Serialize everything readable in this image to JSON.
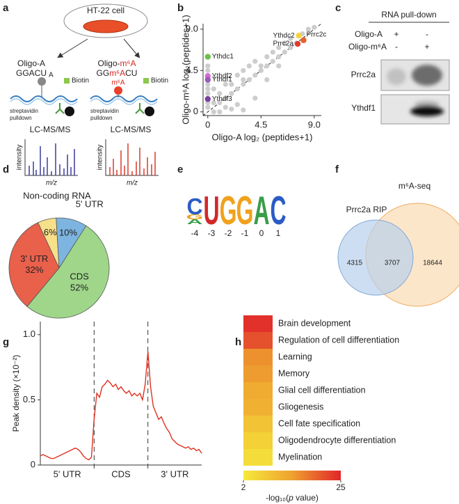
{
  "panel_labels": [
    "a",
    "b",
    "c",
    "d",
    "e",
    "f",
    "g",
    "h"
  ],
  "panel_a": {
    "cell": "HT-22 cell",
    "oligo_a": "Oligo-A",
    "seq_a": "GGACU",
    "oligo_m6a": [
      "Oligo-",
      "m⁶A"
    ],
    "seq_m6a": [
      "GG",
      "m⁶A",
      "CU"
    ],
    "mod_label": "m⁶A",
    "base_label": "A",
    "biotin": [
      "Biotin",
      "Biotin"
    ],
    "pulldown": [
      [
        "streptavidin",
        "pulldown"
      ],
      [
        "streptavidin",
        "pulldown"
      ]
    ],
    "method": [
      "LC-MS/MS",
      "LC-MS/MS"
    ],
    "y_label": [
      "intensity",
      "intensity"
    ],
    "x_label": [
      "m/z",
      "m/z"
    ]
  },
  "panel_c": {
    "title": "RNA pull-down",
    "rows": [
      {
        "label": "Oligo-A",
        "lanes": [
          "+",
          "-"
        ]
      },
      {
        "label": "Oligo-m⁶A",
        "lanes": [
          "-",
          "+"
        ]
      }
    ],
    "blots": [
      "Prrc2a",
      "Ythdf1"
    ]
  },
  "panel_e": {
    "columns": [
      {
        "letters": [
          "C",
          "G",
          "A"
        ],
        "colors": [
          "#2b5cc6",
          "#f0a21c",
          "#3a9d48"
        ]
      },
      {
        "letters": [
          "U"
        ],
        "colors": [
          "#d2282a"
        ]
      },
      {
        "letters": [
          "G"
        ],
        "colors": [
          "#f0a21c"
        ]
      },
      {
        "letters": [
          "G"
        ],
        "colors": [
          "#f0a21c"
        ]
      },
      {
        "letters": [
          "A"
        ],
        "colors": [
          "#3a9d48"
        ]
      },
      {
        "letters": [
          "C"
        ],
        "colors": [
          "#2b5cc6"
        ]
      }
    ],
    "positions": [
      -4,
      -3,
      -2,
      -1,
      0,
      1
    ]
  },
  "panel_f": {
    "sets": [
      "Prrc2a RIP",
      "m⁶A-seq"
    ],
    "counts": [
      4315,
      3707,
      18644
    ]
  },
  "chart_data": [
    {
      "type": "scatter",
      "x_label": "Oligo-A log₂ (peptides+1)",
      "y_label": "Oligo-m⁶A log₂(peptides+1)",
      "xlim": [
        -0.4,
        9.6
      ],
      "ylim": [
        -0.4,
        9.6
      ],
      "xticks": [
        0,
        4.5,
        {
          "value": 9,
          "label": "9.0"
        }
      ],
      "yticks": [
        0,
        4.5,
        {
          "value": 9,
          "label": "9.0"
        }
      ],
      "diagonal": true,
      "series": [
        {
          "color": "#cdcdcd",
          "x": [
            0,
            0,
            0,
            0,
            0,
            0,
            0,
            0.5,
            0.5,
            1,
            1,
            1.5,
            1.5,
            2,
            2,
            2.5,
            2.5,
            3,
            3,
            3,
            3.5,
            3.5,
            4,
            4,
            4.5,
            4.5,
            5,
            5,
            5.5,
            5.5,
            6,
            6,
            6.5,
            6.5,
            7,
            7,
            7.5,
            8,
            8.5,
            9,
            1,
            2,
            3,
            0.5,
            1.5,
            2.5,
            4,
            5,
            6
          ],
          "y": [
            0.5,
            1,
            2,
            2.5,
            3,
            4.5,
            5,
            1,
            2.5,
            1,
            2,
            1.5,
            3,
            2,
            3,
            2.5,
            4,
            3,
            3.5,
            4.5,
            3.5,
            5,
            4,
            5.5,
            4.5,
            5,
            5,
            6,
            5.5,
            6.5,
            6,
            7,
            6.5,
            7.5,
            7,
            8,
            7.5,
            8.5,
            9,
            9.2,
            0,
            0.3,
            0.2,
            0,
            0.5,
            0.8,
            1.5,
            3.5,
            5
          ]
        }
      ],
      "annotations": [
        {
          "text": "Ythdc1",
          "x": 0,
          "y": 6,
          "color": "#6cc04a"
        },
        {
          "text": "Ythdf2",
          "x": 0,
          "y": 3.9,
          "color": "#d66ad6"
        },
        {
          "text": "Ythdf1",
          "x": 0,
          "y": 3.5,
          "color": "#9b59b6"
        },
        {
          "text": "Ythdf3",
          "x": 0,
          "y": 1.4,
          "color": "#7b3f9e"
        },
        {
          "text": "Ythdc2",
          "x": 7.7,
          "y": 8.3,
          "color": "#f5d33a"
        },
        {
          "text": "Prrc2c",
          "x": 8.1,
          "y": 7.8,
          "color": "#e8602a"
        },
        {
          "text": "Prrc2a",
          "x": 7.6,
          "y": 7.4,
          "color": "#e23a2a"
        }
      ]
    },
    {
      "type": "pie",
      "title": "Non-coding RNA",
      "categories": [
        "Non-coding RNA",
        "5' UTR",
        "CDS",
        "3' UTR"
      ],
      "values": [
        6,
        10,
        52,
        32
      ],
      "value_labels": [
        "6%",
        "10%",
        "52%",
        "32%"
      ],
      "colors": [
        "#f7e08a",
        "#7db5e0",
        "#9fd68a",
        "#e9604b"
      ]
    },
    {
      "type": "line",
      "y_label": "Peak density (×10⁻²)",
      "color": "#e0301e",
      "regions": [
        "5' UTR",
        "CDS",
        "3' UTR"
      ],
      "boundaries": [
        1,
        2
      ],
      "xlim": [
        0,
        3
      ],
      "ylim": [
        0,
        1.1
      ],
      "yticks": [
        0,
        0.5,
        {
          "value": 1,
          "label": "1.0"
        }
      ],
      "x": [
        0,
        0.05,
        0.1,
        0.15,
        0.2,
        0.25,
        0.3,
        0.35,
        0.4,
        0.45,
        0.5,
        0.55,
        0.6,
        0.65,
        0.7,
        0.75,
        0.8,
        0.85,
        0.9,
        0.95,
        1,
        1.05,
        1.1,
        1.15,
        1.2,
        1.25,
        1.3,
        1.35,
        1.4,
        1.45,
        1.5,
        1.55,
        1.6,
        1.65,
        1.7,
        1.75,
        1.8,
        1.85,
        1.9,
        1.95,
        2,
        2.05,
        2.1,
        2.15,
        2.2,
        2.25,
        2.3,
        2.35,
        2.4,
        2.45,
        2.5,
        2.55,
        2.6,
        2.65,
        2.7,
        2.75,
        2.8,
        2.85,
        2.9,
        2.95,
        3
      ],
      "values": [
        0.07,
        0.08,
        0.07,
        0.06,
        0.05,
        0.05,
        0.06,
        0.07,
        0.08,
        0.09,
        0.1,
        0.11,
        0.12,
        0.13,
        0.12,
        0.1,
        0.07,
        0.05,
        0.04,
        0.06,
        0.35,
        0.55,
        0.52,
        0.6,
        0.62,
        0.65,
        0.63,
        0.6,
        0.62,
        0.58,
        0.6,
        0.57,
        0.55,
        0.57,
        0.53,
        0.55,
        0.53,
        0.55,
        0.5,
        0.62,
        0.87,
        0.6,
        0.45,
        0.4,
        0.35,
        0.37,
        0.32,
        0.28,
        0.25,
        0.2,
        0.18,
        0.16,
        0.15,
        0.14,
        0.13,
        0.14,
        0.12,
        0.13,
        0.11,
        0.12,
        0.09
      ]
    },
    {
      "type": "heatmap",
      "categories": [
        "Brain development",
        "Regulation of cell differentiation",
        "Learning",
        "Memory",
        "Glial cell differentiation",
        "Gliogenesis",
        "Cell fate specification",
        "Oligodendrocyte differentiation",
        "Myelination"
      ],
      "values": [
        24,
        21,
        15,
        14,
        12,
        11,
        8,
        6,
        4
      ],
      "clim": [
        2,
        25
      ],
      "colorbar_ticks": [
        2,
        25
      ],
      "colormap": [
        "#f5ea3c",
        "#efa12f",
        "#e0262a"
      ],
      "colorbar_label": [
        "-log₁₀(",
        "p",
        " value)"
      ]
    }
  ]
}
